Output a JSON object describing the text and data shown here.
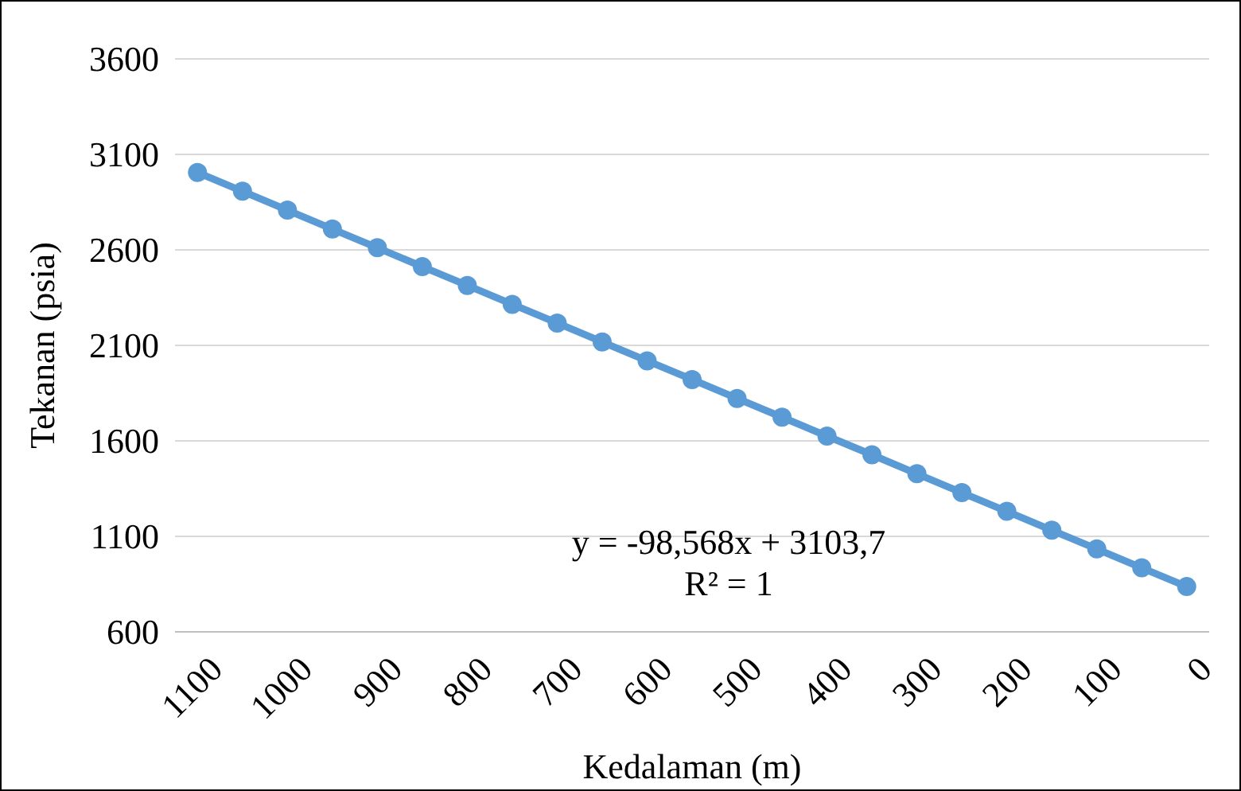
{
  "chart_data": {
    "type": "line",
    "xlabel": "Kedalaman (m)",
    "ylabel": "Tekanan (psia)",
    "categories": [
      "1100",
      null,
      "1000",
      null,
      "900",
      null,
      "800",
      null,
      "700",
      null,
      "600",
      null,
      "500",
      null,
      "400",
      null,
      "300",
      null,
      "200",
      null,
      "100",
      null,
      "0"
    ],
    "series": [
      {
        "color": "#5b9bd5",
        "values": [
          3005,
          2907,
          2808,
          2709,
          2611,
          2512,
          2414,
          2315,
          2217,
          2118,
          2019,
          1921,
          1822,
          1724,
          1625,
          1527,
          1428,
          1329,
          1231,
          1132,
          1034,
          935,
          837
        ]
      }
    ],
    "ylim": [
      600,
      3600
    ],
    "yticks": [
      600,
      1100,
      1600,
      2100,
      2600,
      3100,
      3600
    ],
    "grid": "y",
    "marker": "circle",
    "line_style": "solid",
    "annotations": [
      "y = -98,568x + 3103,7",
      "R² = 1"
    ]
  }
}
